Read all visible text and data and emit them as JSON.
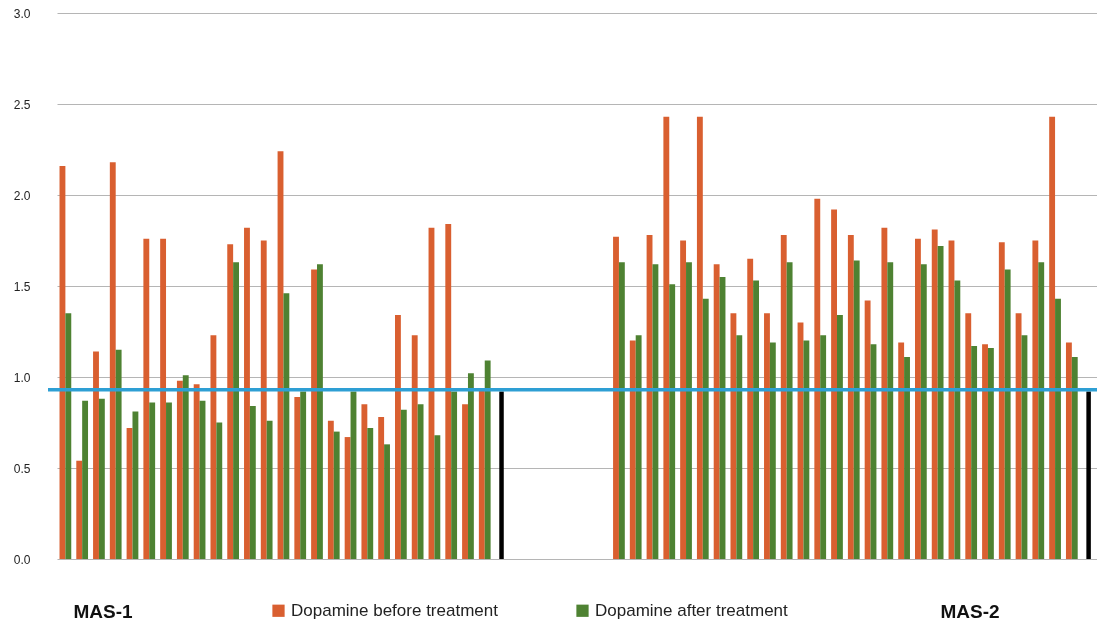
{
  "chart_data": {
    "type": "bar",
    "categories": [
      null,
      null,
      null,
      null,
      null,
      null,
      null,
      null,
      null,
      null,
      null,
      null,
      null,
      null,
      null,
      null,
      null,
      null,
      null,
      null,
      null,
      null,
      null,
      null,
      null,
      null,
      null,
      null,
      null,
      null,
      null,
      null,
      null,
      null,
      null,
      null,
      null,
      null,
      null,
      null,
      null,
      null,
      null,
      null,
      null,
      null,
      null,
      null,
      null,
      null,
      null,
      null,
      null,
      null,
      null,
      null,
      null,
      null,
      null,
      null,
      null,
      null
    ],
    "series": [
      {
        "name": "Dopamine before treatment",
        "color": "#d95f30",
        "values": [
          2.16,
          0.54,
          1.14,
          2.18,
          0.72,
          1.76,
          1.76,
          0.98,
          0.96,
          1.23,
          1.73,
          1.82,
          1.75,
          2.24,
          0.89,
          1.59,
          0.76,
          0.67,
          0.85,
          0.78,
          1.34,
          1.23,
          1.82,
          1.84,
          0.85,
          0.94,
          null,
          null,
          null,
          null,
          null,
          null,
          null,
          1.77,
          1.2,
          1.78,
          2.43,
          1.75,
          2.43,
          1.62,
          1.35,
          1.65,
          1.35,
          1.78,
          1.3,
          1.98,
          1.92,
          1.78,
          1.42,
          1.82,
          1.19,
          1.76,
          1.81,
          1.75,
          1.35,
          1.18,
          1.74,
          1.35,
          1.75,
          2.43,
          1.19,
          null
        ]
      },
      {
        "name": "Dopamine after treatment",
        "color": "#4e8232",
        "values": [
          1.35,
          0.87,
          0.88,
          1.15,
          0.81,
          0.86,
          0.86,
          1.01,
          0.87,
          0.75,
          1.63,
          0.84,
          0.76,
          1.46,
          0.92,
          1.62,
          0.7,
          0.92,
          0.72,
          0.63,
          0.82,
          0.85,
          0.68,
          0.92,
          1.02,
          1.09,
          null,
          null,
          null,
          null,
          null,
          null,
          null,
          1.63,
          1.23,
          1.62,
          1.51,
          1.63,
          1.43,
          1.55,
          1.23,
          1.53,
          1.19,
          1.63,
          1.2,
          1.23,
          1.34,
          1.64,
          1.18,
          1.63,
          1.11,
          1.62,
          1.72,
          1.53,
          1.17,
          1.16,
          1.59,
          1.23,
          1.63,
          1.43,
          1.11,
          null
        ]
      },
      {
        "color": "#000000",
        "values": [
          null,
          null,
          null,
          null,
          null,
          null,
          null,
          null,
          null,
          null,
          null,
          null,
          null,
          null,
          null,
          null,
          null,
          null,
          null,
          null,
          null,
          null,
          null,
          null,
          null,
          null,
          0.92,
          null,
          null,
          null,
          null,
          null,
          null,
          null,
          null,
          null,
          null,
          null,
          null,
          null,
          null,
          null,
          null,
          null,
          null,
          null,
          null,
          null,
          null,
          null,
          null,
          null,
          null,
          null,
          null,
          null,
          null,
          null,
          null,
          null,
          null,
          0.92
        ]
      }
    ],
    "ylim": [
      0,
      3
    ],
    "yticks": [
      {
        "value": 0,
        "label": "0.0"
      },
      {
        "value": 0.5,
        "label": "0.5"
      },
      {
        "value": 1,
        "label": "1.0"
      },
      {
        "value": 1.5,
        "label": "1.5"
      },
      {
        "value": 2,
        "label": "2.0"
      },
      {
        "value": 2.5,
        "label": "2.5"
      },
      {
        "value": 3,
        "label": "3.0"
      }
    ],
    "grid": "y",
    "tick_labels": "y",
    "legend": "bottom",
    "ref_lines": [
      {
        "axis": "y",
        "value": 0.93,
        "color": "#2e9fd4"
      }
    ],
    "annotations": [
      "MAS-1",
      "MAS-2"
    ]
  }
}
